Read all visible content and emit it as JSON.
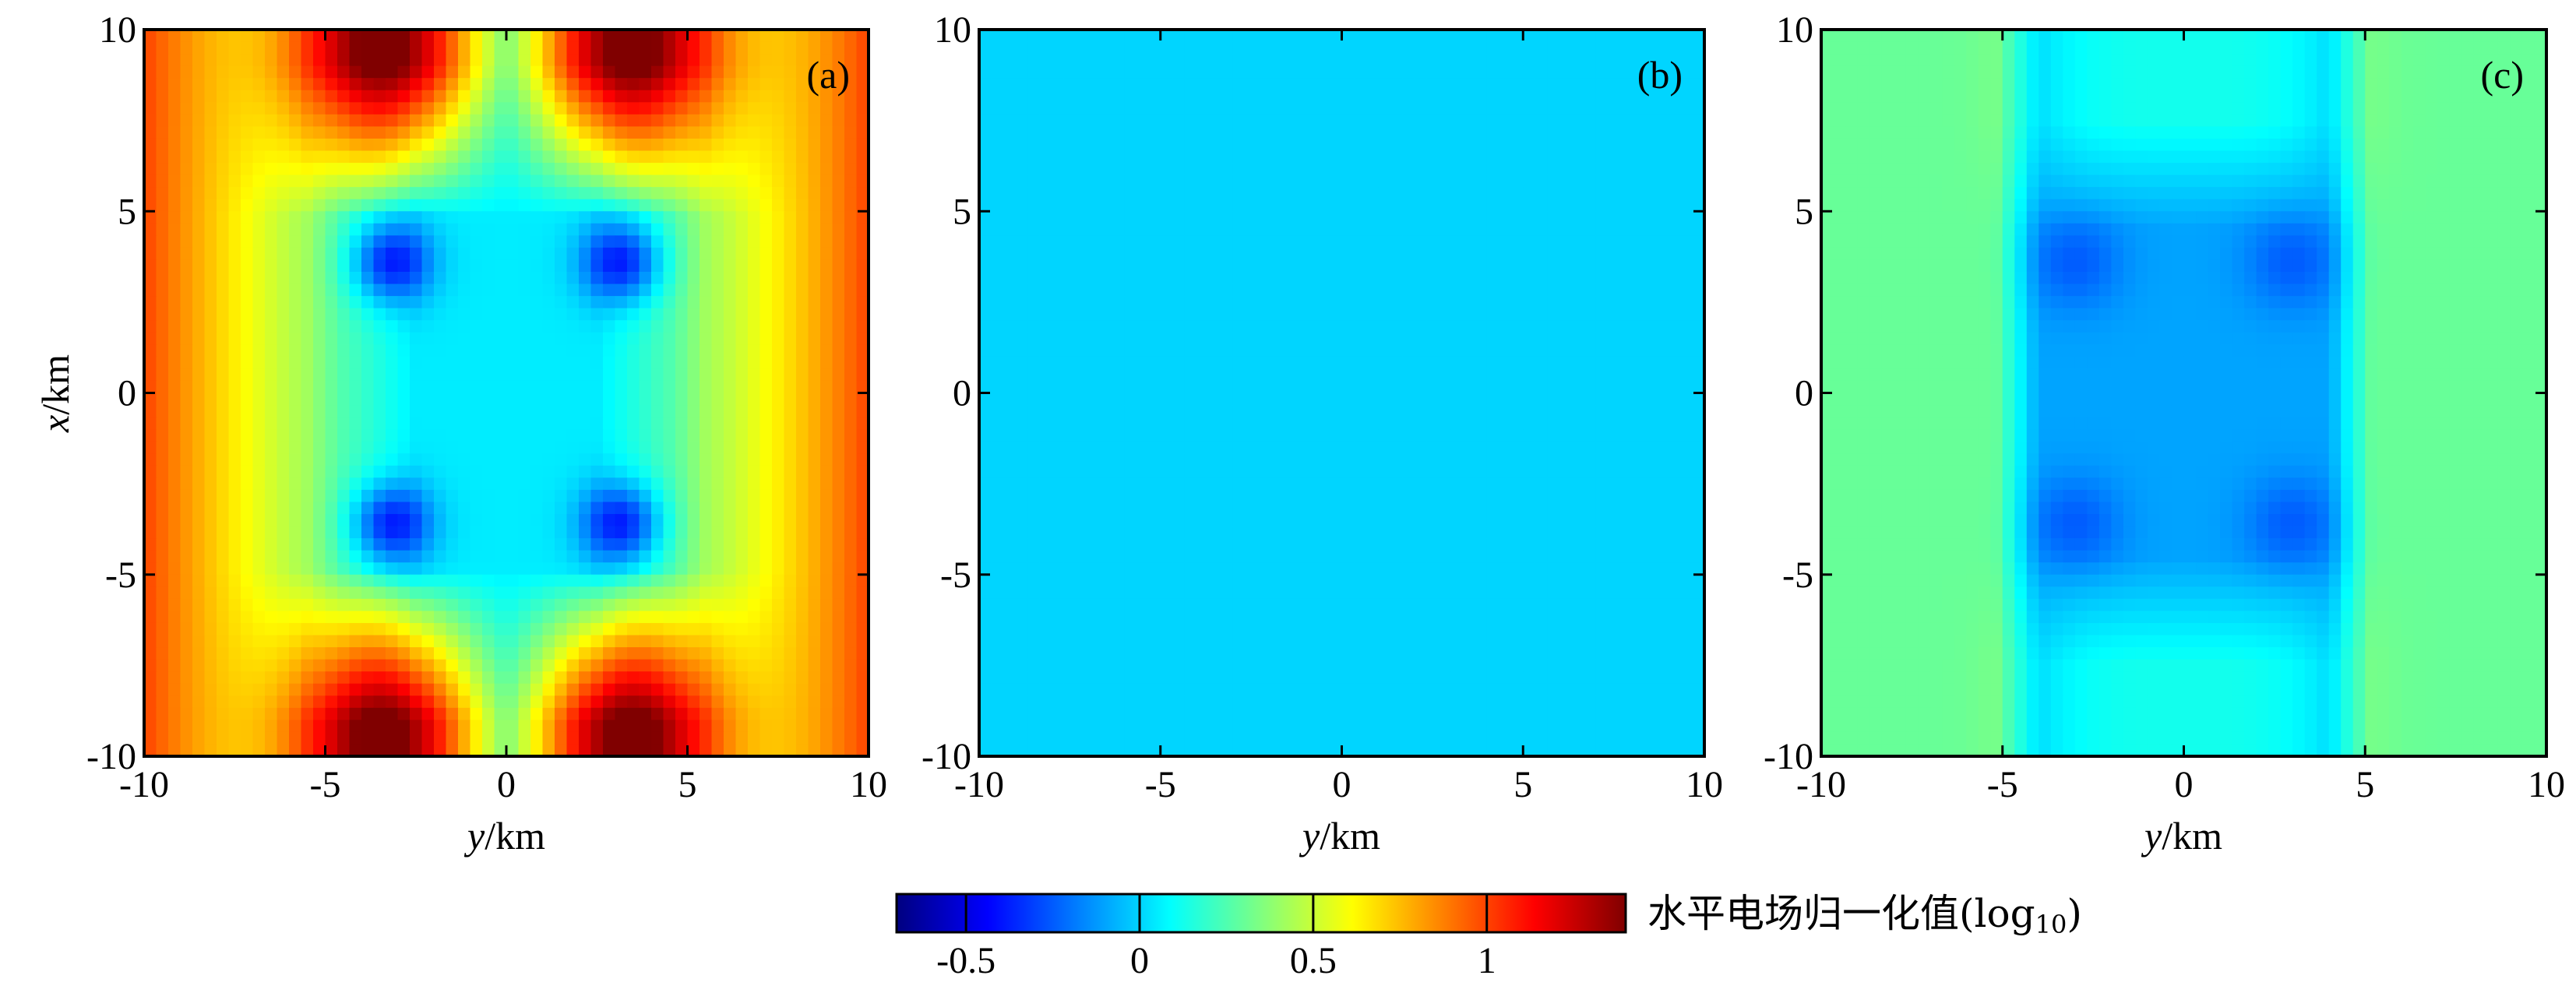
{
  "chart_data": [
    {
      "type": "heatmap",
      "panel_label": "(a)",
      "xlabel_italic": "y",
      "xlabel_unit": "/km",
      "ylabel_italic": "x",
      "ylabel_unit": "/km",
      "xlim": [
        -10,
        10
      ],
      "ylim": [
        -10,
        10
      ],
      "xticks": [
        -10,
        -5,
        0,
        5,
        10
      ],
      "yticks": [
        -10,
        -5,
        0,
        5,
        10
      ],
      "x_tick_labels": [
        "-10",
        "-5",
        "0",
        "5",
        "10"
      ],
      "y_tick_labels": [
        "-10",
        "-5",
        "0",
        "5",
        "10"
      ],
      "field": {
        "description_values": "log10 normalized horizontal electric field",
        "min": -0.6,
        "max": 1.4,
        "center_plateau": 0.05,
        "blue_lobes_min": -0.45,
        "top_bottom_max": 1.35,
        "side_edge_max": 0.95
      }
    },
    {
      "type": "heatmap",
      "panel_label": "(b)",
      "xlabel_italic": "y",
      "xlabel_unit": "/km",
      "xlim": [
        -10,
        10
      ],
      "ylim": [
        -10,
        10
      ],
      "xticks": [
        -10,
        -5,
        0,
        5,
        10
      ],
      "yticks": [
        -10,
        -5,
        0,
        5,
        10
      ],
      "x_tick_labels": [
        "-10",
        "-5",
        "0",
        "5",
        "10"
      ],
      "y_tick_labels": [
        "-10",
        "-5",
        "0",
        "5",
        "10"
      ],
      "field": {
        "uniform_value": 0.0
      }
    },
    {
      "type": "heatmap",
      "panel_label": "(c)",
      "xlabel_italic": "y",
      "xlabel_unit": "/km",
      "xlim": [
        -10,
        10
      ],
      "ylim": [
        -10,
        10
      ],
      "xticks": [
        -10,
        -5,
        0,
        5,
        10
      ],
      "yticks": [
        -10,
        -5,
        0,
        5,
        10
      ],
      "x_tick_labels": [
        "-10",
        "-5",
        "0",
        "5",
        "10"
      ],
      "y_tick_labels": [
        "-10",
        "-5",
        "0",
        "5",
        "10"
      ],
      "field": {
        "min": -0.3,
        "max": 0.5,
        "center_plateau": -0.1,
        "top_bottom_max": 0.45,
        "side_edge_value": 0.3
      }
    }
  ],
  "colorbar": {
    "title_main": "水平电场归一化值(log",
    "title_sub": "10",
    "title_close": ")",
    "range": [
      -0.7,
      1.4
    ],
    "ticks": [
      -0.5,
      0,
      0.5,
      1
    ],
    "tick_labels": [
      "-0.5",
      "0",
      "0.5",
      "1"
    ],
    "colormap": "jet",
    "colors": [
      "#00008f",
      "#0000ff",
      "#0080ff",
      "#00e5ff",
      "#7fff7f",
      "#ffff00",
      "#ff8000",
      "#ff0000",
      "#7f0000"
    ]
  }
}
